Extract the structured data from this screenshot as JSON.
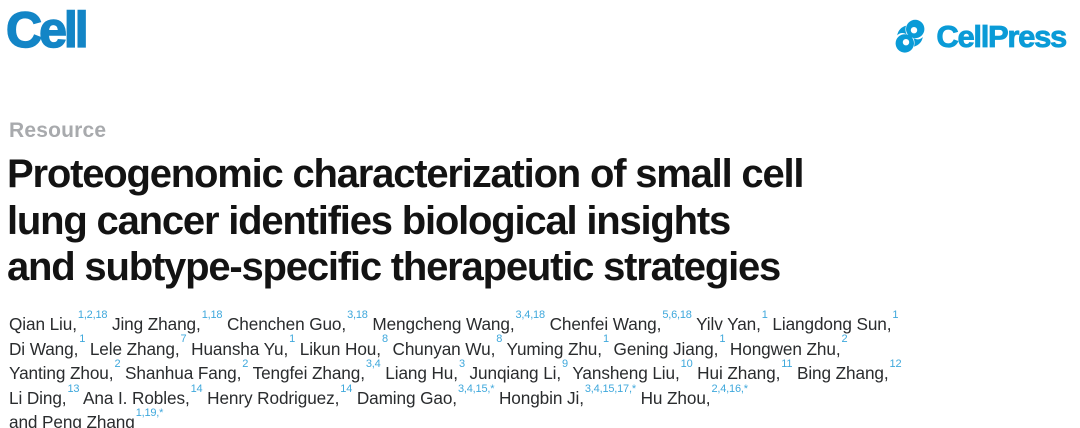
{
  "brand": {
    "journal_wordmark": "Cell",
    "publisher_wordmark": "CellPress",
    "cell_blue": "#1385c6",
    "cellpress_blue": "#0a9bd7",
    "superscript_blue": "#3fa8dc",
    "kicker_gray": "#a8aaad"
  },
  "article": {
    "kicker": "Resource",
    "title_lines": [
      "Proteogenomic characterization of small cell",
      "lung cancer identifies biological insights",
      "and subtype-specific therapeutic strategies"
    ],
    "authors_lines": [
      [
        {
          "t": "Qian Liu,",
          "s": "1,2,18"
        },
        {
          "t": " Jing Zhang,",
          "s": "1,18"
        },
        {
          "t": " Chenchen Guo,",
          "s": "3,18"
        },
        {
          "t": " Mengcheng Wang,",
          "s": "3,4,18"
        },
        {
          "t": " Chenfei Wang,",
          "s": "5,6,18"
        },
        {
          "t": " Yilv Yan,",
          "s": "1"
        },
        {
          "t": " Liangdong Sun,",
          "s": "1"
        }
      ],
      [
        {
          "t": "Di Wang,",
          "s": "1"
        },
        {
          "t": " Lele Zhang,",
          "s": "7"
        },
        {
          "t": " Huansha Yu,",
          "s": "1"
        },
        {
          "t": " Likun Hou,",
          "s": "8"
        },
        {
          "t": " Chunyan Wu,",
          "s": "8"
        },
        {
          "t": " Yuming Zhu,",
          "s": "1"
        },
        {
          "t": " Gening Jiang,",
          "s": "1"
        },
        {
          "t": " Hongwen Zhu,",
          "s": "2"
        }
      ],
      [
        {
          "t": "Yanting Zhou,",
          "s": "2"
        },
        {
          "t": " Shanhua Fang,",
          "s": "2"
        },
        {
          "t": " Tengfei Zhang,",
          "s": "3,4"
        },
        {
          "t": " Liang Hu,",
          "s": "3"
        },
        {
          "t": " Junqiang Li,",
          "s": "9"
        },
        {
          "t": " Yansheng Liu,",
          "s": "10"
        },
        {
          "t": " Hui Zhang,",
          "s": "11"
        },
        {
          "t": " Bing Zhang,",
          "s": "12"
        }
      ],
      [
        {
          "t": "Li Ding,",
          "s": "13"
        },
        {
          "t": " Ana I. Robles,",
          "s": "14"
        },
        {
          "t": " Henry Rodriguez,",
          "s": "14"
        },
        {
          "t": " Daming Gao,",
          "s": "3,4,15,*"
        },
        {
          "t": " Hongbin Ji,",
          "s": "3,4,15,17,*"
        },
        {
          "t": " Hu Zhou,",
          "s": "2,4,16,*"
        }
      ],
      [
        {
          "t": "and Peng Zhang",
          "s": "1,19,*"
        }
      ]
    ]
  }
}
